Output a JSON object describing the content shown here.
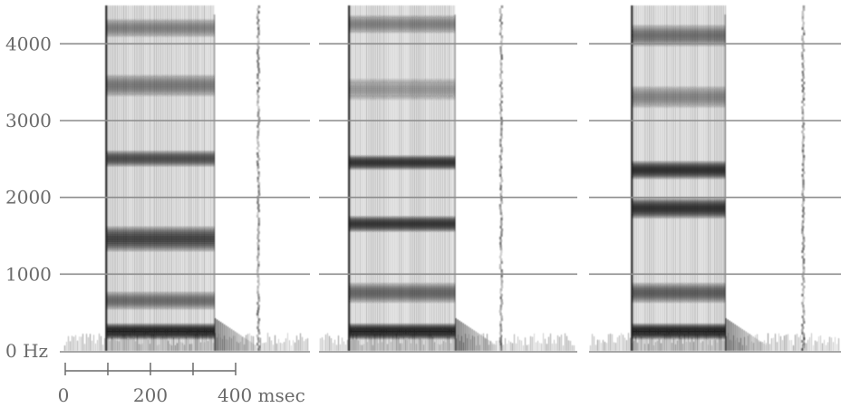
{
  "y_axis": {
    "ticks": [
      {
        "value": 4000,
        "label": "4000"
      },
      {
        "value": 3000,
        "label": "3000"
      },
      {
        "value": 2000,
        "label": "2000"
      },
      {
        "value": 1000,
        "label": "1000"
      },
      {
        "value": 0,
        "label": "0 Hz"
      }
    ],
    "min": 0,
    "max": 4500
  },
  "time_scale": {
    "labels": [
      {
        "value": 0,
        "label": "0"
      },
      {
        "value": 200,
        "label": "200"
      },
      {
        "value": 400,
        "label": "400 msec"
      }
    ],
    "ticks_ms": [
      0,
      100,
      200,
      300,
      400
    ],
    "unit": "msec"
  },
  "panels": [
    {
      "voicing_ms": [
        100,
        355
      ],
      "release_ms": 455,
      "formants_hz": [
        {
          "f": 250,
          "w": 220,
          "s": 1.0
        },
        {
          "f": 650,
          "w": 250,
          "s": 0.55
        },
        {
          "f": 1450,
          "w": 350,
          "s": 0.8
        },
        {
          "f": 2500,
          "w": 220,
          "s": 0.7
        },
        {
          "f": 3450,
          "w": 300,
          "s": 0.5
        },
        {
          "f": 4200,
          "w": 250,
          "s": 0.45
        }
      ]
    },
    {
      "voicing_ms": [
        70,
        320
      ],
      "release_ms": 425,
      "formants_hz": [
        {
          "f": 250,
          "w": 220,
          "s": 1.0
        },
        {
          "f": 750,
          "w": 280,
          "s": 0.6
        },
        {
          "f": 1650,
          "w": 220,
          "s": 0.85
        },
        {
          "f": 2450,
          "w": 200,
          "s": 0.85
        },
        {
          "f": 3400,
          "w": 300,
          "s": 0.35
        },
        {
          "f": 4250,
          "w": 250,
          "s": 0.45
        }
      ]
    },
    {
      "voicing_ms": [
        100,
        320
      ],
      "release_ms": 500,
      "formants_hz": [
        {
          "f": 250,
          "w": 220,
          "s": 1.0
        },
        {
          "f": 750,
          "w": 280,
          "s": 0.65
        },
        {
          "f": 1850,
          "w": 280,
          "s": 0.9
        },
        {
          "f": 2350,
          "w": 250,
          "s": 0.9
        },
        {
          "f": 3300,
          "w": 300,
          "s": 0.45
        },
        {
          "f": 4100,
          "w": 300,
          "s": 0.55
        }
      ]
    }
  ],
  "colors": {
    "ink": "#141414",
    "grid": "#8c8c8c",
    "axis": "#6a6a6a",
    "background": "#ffffff"
  }
}
